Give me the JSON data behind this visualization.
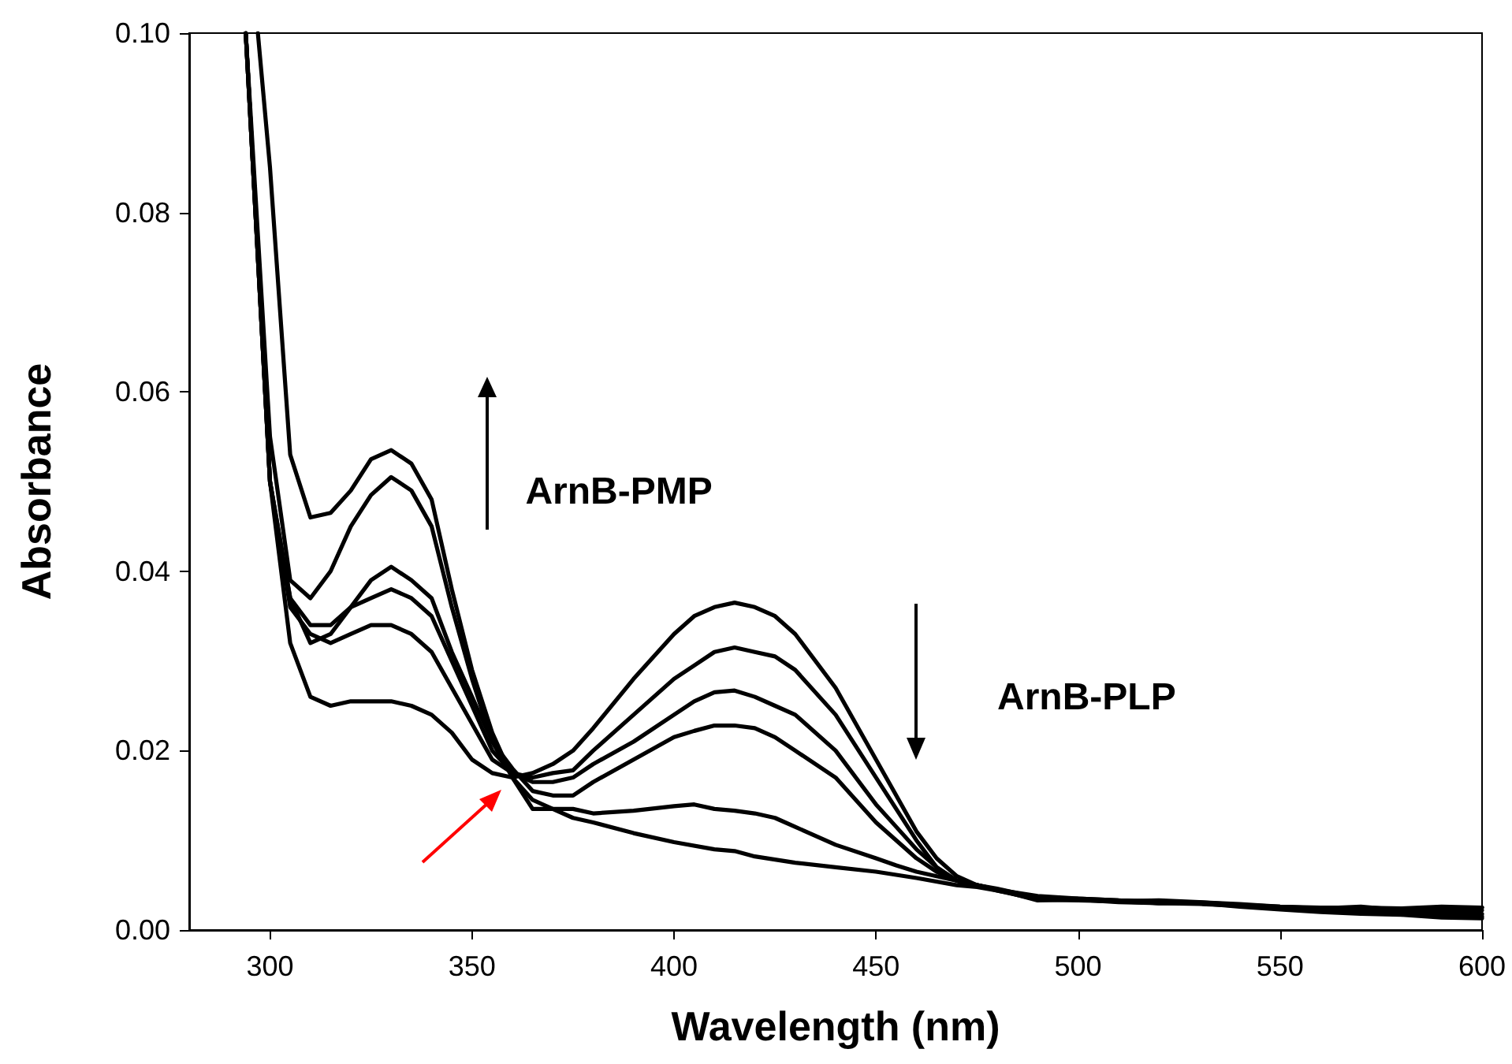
{
  "chart_data": {
    "type": "line",
    "xlabel": "Wavelength (nm)",
    "ylabel": "Absorbance",
    "xlim": [
      280,
      600
    ],
    "xticks": [
      300,
      350,
      400,
      450,
      500,
      550,
      600
    ],
    "ylim": [
      0,
      0.1
    ],
    "yticks": [
      {
        "value": 0,
        "label": "0.00"
      },
      {
        "value": 0.02,
        "label": "0.02"
      },
      {
        "value": 0.04,
        "label": "0.04"
      },
      {
        "value": 0.06,
        "label": "0.06"
      },
      {
        "value": 0.08,
        "label": "0.08"
      },
      {
        "value": 0.1,
        "label": "0.10"
      }
    ],
    "x": [
      294,
      300,
      305,
      310,
      315,
      320,
      325,
      330,
      335,
      340,
      345,
      350,
      355,
      360,
      365,
      370,
      375,
      380,
      390,
      400,
      405,
      410,
      415,
      420,
      425,
      430,
      440,
      450,
      455,
      460,
      465,
      470,
      475,
      480,
      490,
      500,
      510,
      520,
      530,
      540,
      550,
      560,
      570,
      580,
      590,
      600
    ],
    "series": [
      {
        "color": "#000000",
        "values": [
          0.1,
          0.05,
          0.032,
          0.026,
          0.025,
          0.0255,
          0.0255,
          0.0255,
          0.025,
          0.024,
          0.022,
          0.019,
          0.0175,
          0.017,
          0.0175,
          0.0185,
          0.02,
          0.0225,
          0.028,
          0.033,
          0.035,
          0.036,
          0.0365,
          0.036,
          0.035,
          0.033,
          0.027,
          0.019,
          0.015,
          0.011,
          0.008,
          0.006,
          0.005,
          0.0045,
          0.0038,
          0.0035,
          0.0033,
          0.0032,
          0.003,
          0.0028,
          0.0025,
          0.0022,
          0.002,
          0.002,
          0.0018,
          0.0018
        ]
      },
      {
        "color": "#000000",
        "values": [
          0.1,
          0.05,
          0.036,
          0.033,
          0.032,
          0.033,
          0.034,
          0.034,
          0.033,
          0.031,
          0.027,
          0.023,
          0.019,
          0.0175,
          0.017,
          0.0175,
          0.0178,
          0.02,
          0.024,
          0.028,
          0.0295,
          0.031,
          0.0315,
          0.031,
          0.0305,
          0.029,
          0.024,
          0.017,
          0.0135,
          0.01,
          0.007,
          0.0055,
          0.005,
          0.0045,
          0.0035,
          0.0034,
          0.0032,
          0.003,
          0.0031,
          0.0028,
          0.0024,
          0.0023,
          0.0021,
          0.0019,
          0.0016,
          0.0015
        ]
      },
      {
        "color": "#000000",
        "values": [
          0.1,
          0.05,
          0.037,
          0.034,
          0.034,
          0.036,
          0.037,
          0.038,
          0.037,
          0.035,
          0.03,
          0.025,
          0.02,
          0.0175,
          0.0165,
          0.0165,
          0.017,
          0.0185,
          0.021,
          0.024,
          0.0255,
          0.0265,
          0.0267,
          0.026,
          0.025,
          0.024,
          0.02,
          0.014,
          0.0115,
          0.009,
          0.007,
          0.0055,
          0.005,
          0.0046,
          0.0036,
          0.0034,
          0.0031,
          0.003,
          0.0029,
          0.0027,
          0.0024,
          0.0022,
          0.002,
          0.0022,
          0.002,
          0.0022
        ]
      },
      {
        "color": "#000000",
        "values": [
          0.1,
          0.05,
          0.037,
          0.032,
          0.033,
          0.036,
          0.039,
          0.0405,
          0.039,
          0.037,
          0.031,
          0.026,
          0.021,
          0.018,
          0.0155,
          0.015,
          0.015,
          0.0165,
          0.019,
          0.0215,
          0.0222,
          0.0228,
          0.0228,
          0.0225,
          0.0215,
          0.02,
          0.017,
          0.012,
          0.01,
          0.008,
          0.0065,
          0.0055,
          0.005,
          0.0044,
          0.0034,
          0.0033,
          0.0032,
          0.0031,
          0.003,
          0.0026,
          0.0023,
          0.002,
          0.0018,
          0.0017,
          0.0014,
          0.0013
        ]
      },
      {
        "color": "#000000",
        "values": [
          0.1,
          0.055,
          0.039,
          0.037,
          0.04,
          0.045,
          0.0485,
          0.0505,
          0.049,
          0.045,
          0.036,
          0.028,
          0.021,
          0.017,
          0.0145,
          0.0135,
          0.0135,
          0.013,
          0.0133,
          0.0138,
          0.014,
          0.0135,
          0.0133,
          0.013,
          0.0125,
          0.0115,
          0.0095,
          0.008,
          0.0072,
          0.0065,
          0.006,
          0.0055,
          0.005,
          0.0045,
          0.0033,
          0.0034,
          0.0032,
          0.0033,
          0.0031,
          0.0029,
          0.0026,
          0.0024,
          0.0026,
          0.0022,
          0.0024,
          0.0025
        ]
      },
      {
        "color": "#000000",
        "x": [
          297,
          300,
          305,
          310,
          315,
          320,
          325,
          330,
          335,
          340,
          345,
          350,
          355,
          360,
          365,
          370,
          375,
          380,
          390,
          400,
          410,
          415,
          420,
          430,
          440,
          450,
          460,
          470,
          475,
          480,
          490,
          500,
          510,
          520,
          530,
          540,
          550,
          560,
          570,
          580,
          590,
          600
        ],
        "values": [
          0.1,
          0.085,
          0.053,
          0.046,
          0.0465,
          0.049,
          0.0525,
          0.0535,
          0.052,
          0.048,
          0.038,
          0.029,
          0.022,
          0.017,
          0.0135,
          0.0135,
          0.0125,
          0.012,
          0.0108,
          0.0098,
          0.009,
          0.0088,
          0.0082,
          0.0075,
          0.007,
          0.0065,
          0.0058,
          0.005,
          0.0048,
          0.0044,
          0.0035,
          0.0035,
          0.0033,
          0.003,
          0.003,
          0.0028,
          0.0026,
          0.0025,
          0.0025,
          0.0024,
          0.0026,
          0.0025
        ]
      }
    ],
    "annotations": [
      "ArnB-PMP",
      "ArnB-PLP"
    ],
    "grid": false,
    "marker": "none",
    "line_style": "solid"
  }
}
